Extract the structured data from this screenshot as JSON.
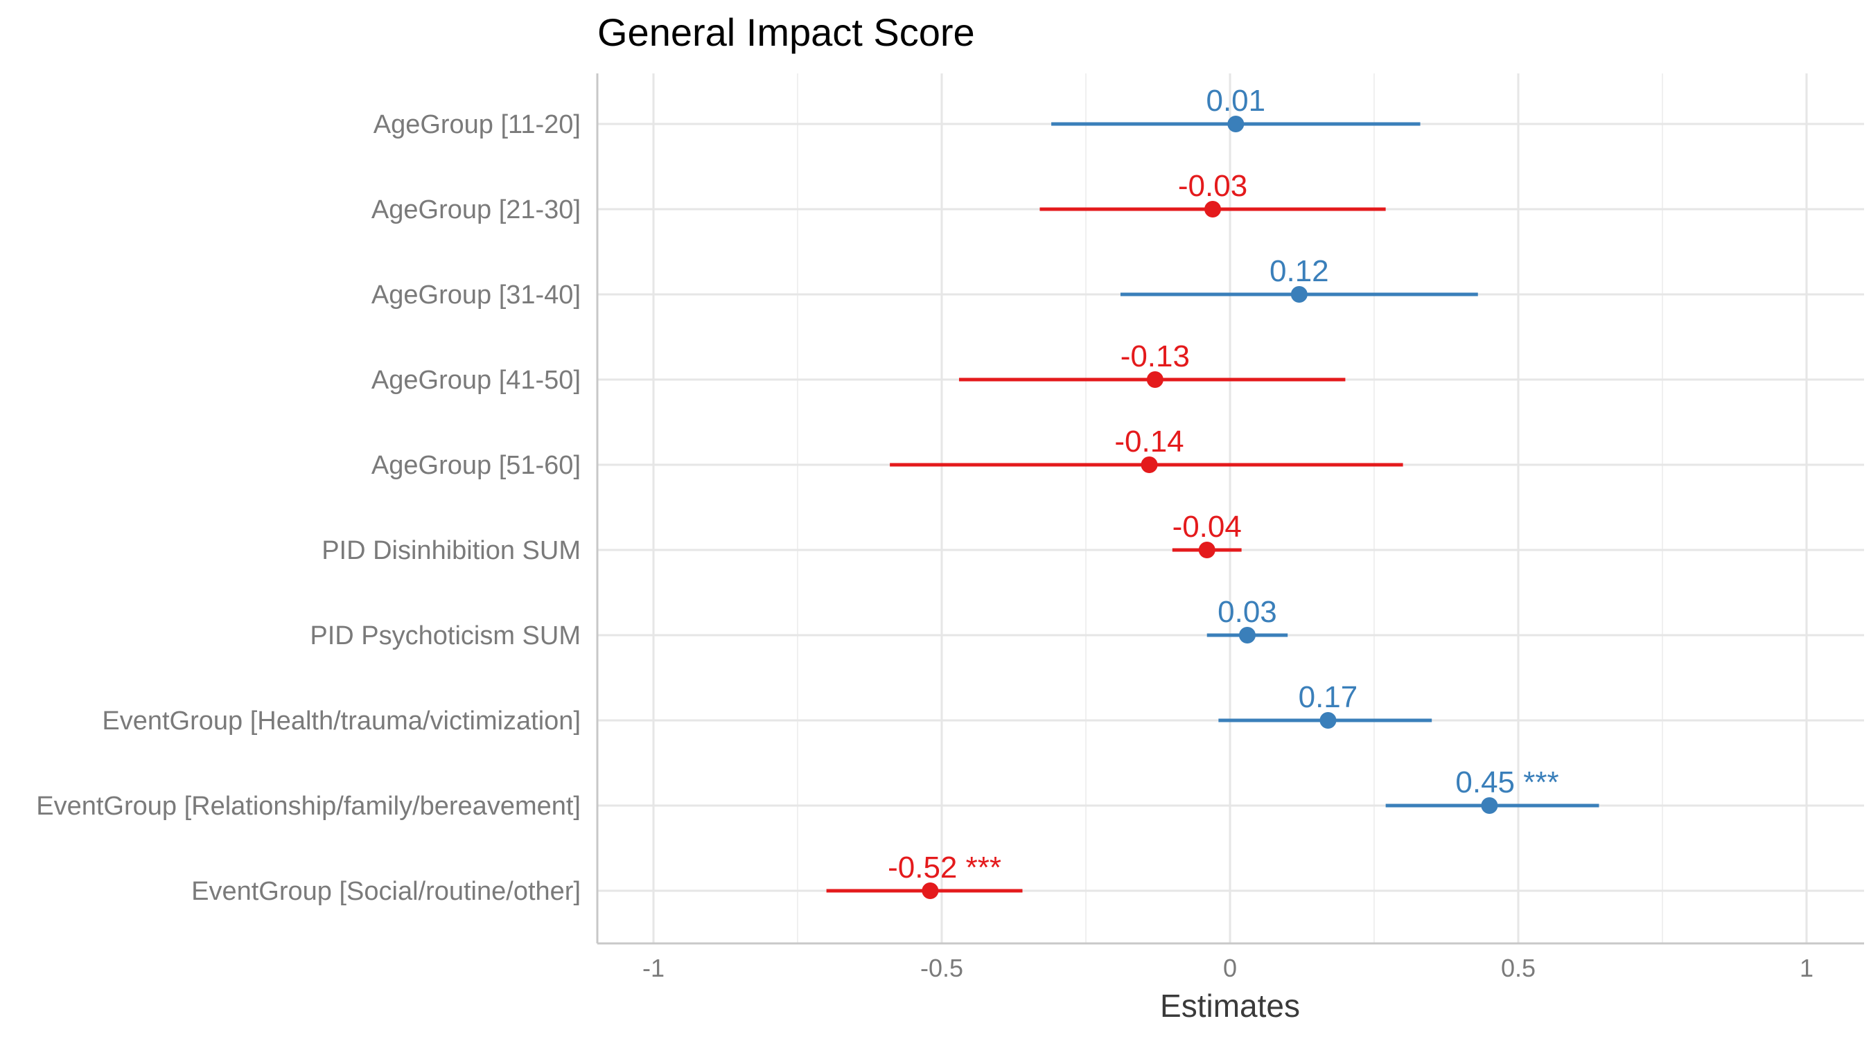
{
  "chart_data": {
    "type": "forest",
    "title": "General Impact Score",
    "xlabel": "Estimates",
    "xlim": [
      -1.1,
      1.1
    ],
    "xticks": [
      -1,
      -0.5,
      0,
      0.5,
      1
    ],
    "xtick_labels": [
      "-1",
      "-0.5",
      "0",
      "0.5",
      "1"
    ],
    "grid": true,
    "colors": {
      "positive": "#3A7FBA",
      "negative": "#E41A1C"
    },
    "terms": [
      {
        "label": "AgeGroup [11-20]",
        "estimate": 0.01,
        "ci_low": -0.31,
        "ci_high": 0.33,
        "value_label": "0.01",
        "sig": ""
      },
      {
        "label": "AgeGroup [21-30]",
        "estimate": -0.03,
        "ci_low": -0.33,
        "ci_high": 0.27,
        "value_label": "-0.03",
        "sig": ""
      },
      {
        "label": "AgeGroup [31-40]",
        "estimate": 0.12,
        "ci_low": -0.19,
        "ci_high": 0.43,
        "value_label": "0.12",
        "sig": ""
      },
      {
        "label": "AgeGroup [41-50]",
        "estimate": -0.13,
        "ci_low": -0.47,
        "ci_high": 0.2,
        "value_label": "-0.13",
        "sig": ""
      },
      {
        "label": "AgeGroup [51-60]",
        "estimate": -0.14,
        "ci_low": -0.59,
        "ci_high": 0.3,
        "value_label": "-0.14",
        "sig": ""
      },
      {
        "label": "PID Disinhibition SUM",
        "estimate": -0.04,
        "ci_low": -0.1,
        "ci_high": 0.02,
        "value_label": "-0.04",
        "sig": ""
      },
      {
        "label": "PID Psychoticism SUM",
        "estimate": 0.03,
        "ci_low": -0.04,
        "ci_high": 0.1,
        "value_label": "0.03",
        "sig": ""
      },
      {
        "label": "EventGroup [Health/trauma/victimization]",
        "estimate": 0.17,
        "ci_low": -0.02,
        "ci_high": 0.35,
        "value_label": "0.17",
        "sig": ""
      },
      {
        "label": "EventGroup [Relationship/family/bereavement]",
        "estimate": 0.45,
        "ci_low": 0.27,
        "ci_high": 0.64,
        "value_label": "0.45",
        "sig": "***"
      },
      {
        "label": "EventGroup [Social/routine/other]",
        "estimate": -0.52,
        "ci_low": -0.7,
        "ci_high": -0.36,
        "value_label": "-0.52",
        "sig": "***"
      }
    ]
  }
}
